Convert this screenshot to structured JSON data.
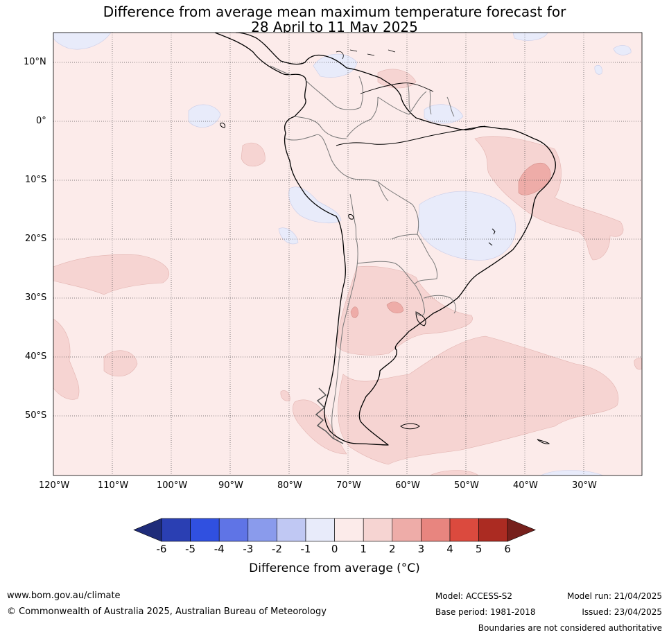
{
  "title_line1": "Difference from average mean maximum temperature forecast for",
  "title_line2": "28 April to 11 May 2025",
  "lat_labels": [
    "10°N",
    "0°",
    "10°S",
    "20°S",
    "30°S",
    "40°S",
    "50°S"
  ],
  "lon_labels": [
    "120°W",
    "110°W",
    "100°W",
    "90°W",
    "80°W",
    "70°W",
    "60°W",
    "50°W",
    "40°W",
    "30°W"
  ],
  "colorbar": {
    "ticks": [
      "-6",
      "-5",
      "-4",
      "-3",
      "-2",
      "-1",
      "0",
      "1",
      "2",
      "3",
      "4",
      "5",
      "6"
    ],
    "colors": [
      "#1f2c7a",
      "#2a3fb3",
      "#3050e0",
      "#5f74e6",
      "#8a9bec",
      "#c0c8f3",
      "#e8ebfa",
      "#fcebea",
      "#f6d4d2",
      "#eeaca8",
      "#e8857f",
      "#db4a3e",
      "#ab2b22",
      "#76201c"
    ],
    "title": "Difference from average (°C)"
  },
  "footer": {
    "site": "www.bom.gov.au/climate",
    "copyright": "© Commonwealth of Australia 2025, Australian Bureau of Meteorology",
    "model": "Model: ACCESS-S2",
    "base_period": "Base period: 1981-2018",
    "model_run": "Model run: 21/04/2025",
    "issued": "Issued: 23/04/2025",
    "disclaimer": "Boundaries are not considered authoritative"
  }
}
